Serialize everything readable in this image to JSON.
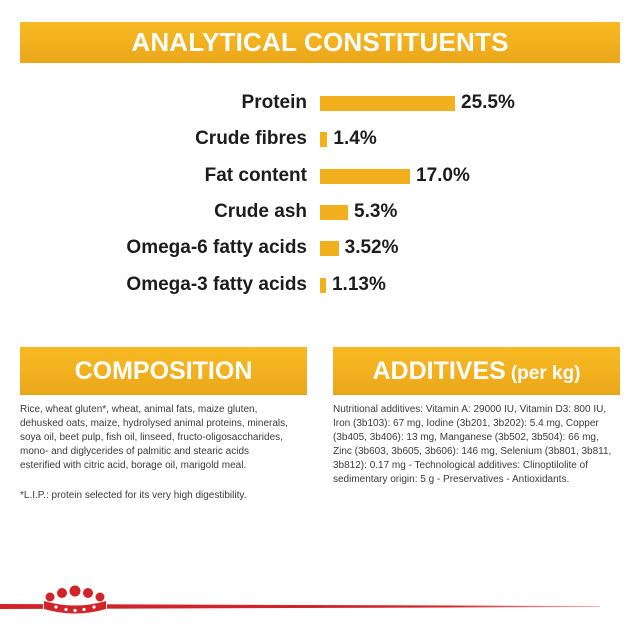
{
  "colors": {
    "accent": "#F2B01E",
    "heading_text": "#FFFFFF",
    "label_text": "#1C1C1C",
    "body_text": "#3A3A3A",
    "brand_red": "#D2232A"
  },
  "chart_data": {
    "type": "bar",
    "orientation": "horizontal",
    "title": "ANALYTICAL CONSTITUENTS",
    "categories": [
      "Protein",
      "Crude fibres",
      "Fat content",
      "Crude ash",
      "Omega-6 fatty acids",
      "Omega-3 fatty acids"
    ],
    "values": [
      25.5,
      1.4,
      17.0,
      5.3,
      3.52,
      1.13
    ],
    "value_labels": [
      "25.5%",
      "1.4%",
      "17.0%",
      "5.3%",
      "3.52%",
      "1.13%"
    ],
    "grid": false,
    "bar_color": "#F2B01E"
  },
  "composition": {
    "heading": "COMPOSITION",
    "lines": [
      "Rice, wheat gluten*, wheat, animal fats, maize gluten,",
      "dehusked oats, maize, hydrolysed animal proteins, minerals,",
      "soya oil, beet pulp, fish oil, linseed, fructo-oligosaccharides,",
      "mono- and diglycerides of palmitic and stearic acids",
      "esterified with citric acid, borage oil, marigold meal."
    ],
    "footnote": "*L.I.P.: protein selected for its very high digestibility."
  },
  "additives": {
    "heading": "ADDITIVES",
    "heading_suffix": "(per kg)",
    "lines": [
      "Nutritional additives: Vitamin A: 29000 IU, Vitamin D3: 800 IU,",
      "Iron (3b103): 67 mg, Iodine (3b201, 3b202): 5.4 mg, Copper",
      "(3b405, 3b406): 13 mg, Manganese (3b502, 3b504): 66 mg,",
      "Zinc (3b603, 3b605, 3b606): 146 mg, Selenium (3b801, 3b811,",
      "3b812): 0.17 mg - Technological additives: Clinoptilolite of",
      "sedimentary origin: 5 g - Preservatives - Antioxidants."
    ]
  },
  "logo": {
    "icon": "crown-logo"
  }
}
